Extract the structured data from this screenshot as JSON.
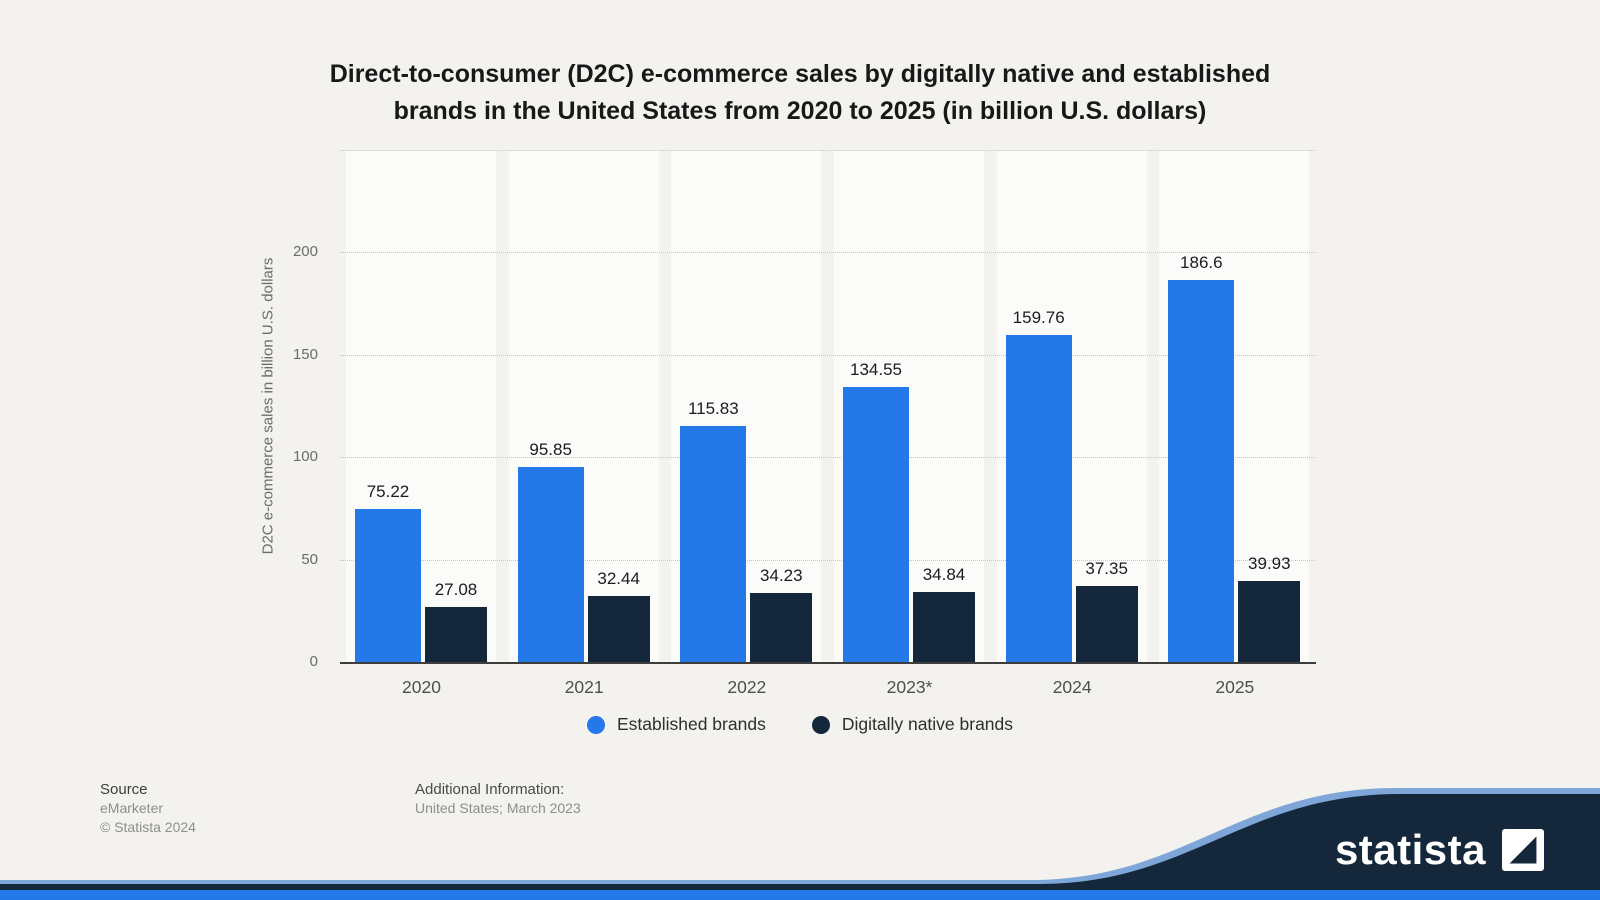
{
  "title": {
    "line1": "Direct-to-consumer (D2C) e-commerce sales by digitally native and established",
    "line2": "brands in the United States from 2020 to 2025 (in billion U.S. dollars)"
  },
  "chart_data": {
    "type": "bar",
    "categories": [
      "2020",
      "2021",
      "2022",
      "2023*",
      "2024",
      "2025"
    ],
    "series": [
      {
        "name": "Established brands",
        "color": "#2478e8",
        "values": [
          75.22,
          95.85,
          115.83,
          134.55,
          159.76,
          186.6
        ]
      },
      {
        "name": "Digitally native brands",
        "color": "#15273a",
        "values": [
          27.08,
          32.44,
          34.23,
          34.84,
          37.35,
          39.93
        ]
      }
    ],
    "ylabel": "D2C e-commerce sales in billion U.S. dollars",
    "yticks": [
      0,
      50,
      100,
      150,
      200
    ],
    "ylim": [
      0,
      200
    ],
    "grid": "dotted horizontal",
    "legend_position": "bottom"
  },
  "footer": {
    "source_label": "Source",
    "source_name": "eMarketer",
    "copyright": "© Statista 2024",
    "additional_label": "Additional Information:",
    "additional_value": "United States; March 2023"
  },
  "branding": {
    "logo_text": "statista",
    "navy": "#15273a",
    "accent_blue": "#2478e8",
    "edge_blue": "#7ea6d8"
  }
}
